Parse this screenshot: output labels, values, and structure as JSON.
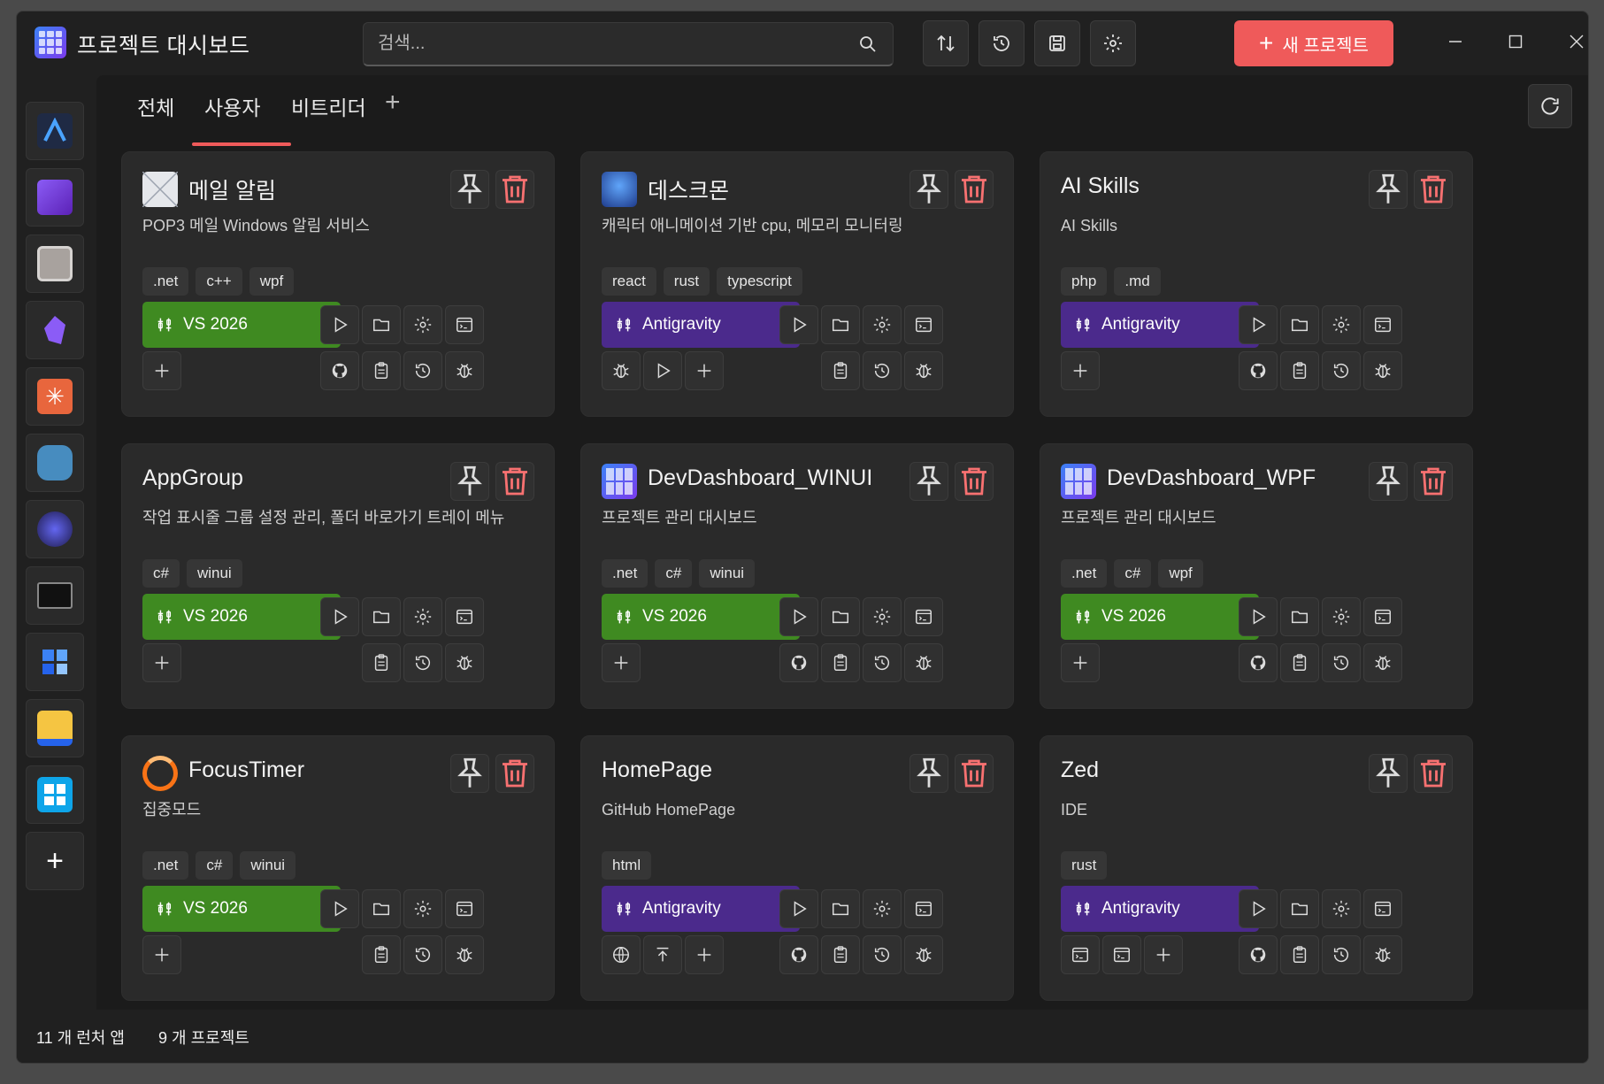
{
  "app": {
    "title": "프로젝트 대시보드"
  },
  "search": {
    "placeholder": "검색..."
  },
  "toolbar": {
    "buttons": [
      "sort-icon",
      "history-icon",
      "save-icon",
      "gear-icon"
    ],
    "new_project_label": "새 프로젝트",
    "accent_color": "#ef5a5a"
  },
  "launcher": {
    "items": [
      "arc-icon",
      "visual-studio-icon",
      "editor-icon",
      "obsidian-icon",
      "claude-icon",
      "godot-icon",
      "flame-icon",
      "terminal-icon",
      "cubes-icon",
      "folder-icon",
      "windows-icon"
    ],
    "add_label": "+"
  },
  "tabs": {
    "items": [
      "전체",
      "사용자",
      "비트리더"
    ],
    "active": "사용자",
    "add_label": "+"
  },
  "cards": [
    {
      "title": "메일 알림",
      "desc": "POP3 메일 Windows 알림 서비스",
      "tags": [
        ".net",
        "c++",
        "wpf"
      ],
      "ide": "VS 2026",
      "ide_color": "#3f8a21",
      "icon": "mail-icon"
    },
    {
      "title": "데스크몬",
      "desc": "캐릭터 애니메이션 기반 cpu, 메모리 모니터링",
      "tags": [
        "react",
        "rust",
        "typescript"
      ],
      "ide": "Antigravity",
      "ide_color": "#4b2a8c",
      "icon": "robot-icon"
    },
    {
      "title": "AI Skills",
      "desc": "AI Skills",
      "tags": [
        "php",
        ".md"
      ],
      "ide": "Antigravity",
      "ide_color": "#4b2a8c",
      "icon": ""
    },
    {
      "title": "AppGroup",
      "desc": "작업 표시줄 그룹 설정 관리, 폴더 바로가기 트레이 메뉴",
      "tags": [
        "c#",
        "winui"
      ],
      "ide": "VS 2026",
      "ide_color": "#3f8a21",
      "icon": ""
    },
    {
      "title": "DevDashboard_WINUI",
      "desc": "프로젝트 관리 대시보드",
      "tags": [
        ".net",
        "c#",
        "winui"
      ],
      "ide": "VS 2026",
      "ide_color": "#3f8a21",
      "icon": "dashboard-icon"
    },
    {
      "title": "DevDashboard_WPF",
      "desc": "프로젝트 관리 대시보드",
      "tags": [
        ".net",
        "c#",
        "wpf"
      ],
      "ide": "VS 2026",
      "ide_color": "#3f8a21",
      "icon": "dashboard-icon"
    },
    {
      "title": "FocusTimer",
      "desc": "집중모드",
      "tags": [
        ".net",
        "c#",
        "winui"
      ],
      "ide": "VS 2026",
      "ide_color": "#3f8a21",
      "icon": "ring-icon"
    },
    {
      "title": "HomePage",
      "desc": "GitHub HomePage",
      "tags": [
        "html"
      ],
      "ide": "Antigravity",
      "ide_color": "#4b2a8c",
      "icon": ""
    },
    {
      "title": "Zed",
      "desc": "IDE",
      "tags": [
        "rust"
      ],
      "ide": "Antigravity",
      "ide_color": "#4b2a8c",
      "icon": ""
    }
  ],
  "status": {
    "launchers": "11 개 런처 앱",
    "projects": "9 개 프로젝트"
  }
}
